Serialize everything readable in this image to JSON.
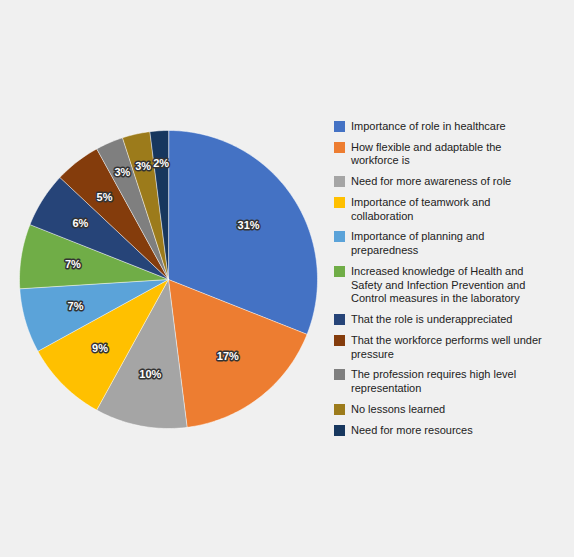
{
  "chart_data": {
    "type": "pie",
    "categories": [
      "Importance of role in healthcare",
      "How flexible and adaptable the\nworkforce is",
      "Need for more awareness of role",
      "Importance of teamwork and\ncollaboration",
      "Importance of planning and\npreparedness",
      "Increased knowledge of Health and\nSafety and Infection Prevention and\nControl measures in the laboratory",
      "That the role is underappreciated",
      "That the workforce performs well under\npressure",
      "The profession requires high level\nrepresentation",
      "No lessons learned",
      "Need for more resources"
    ],
    "values": [
      31,
      17,
      10,
      9,
      7,
      7,
      6,
      5,
      3,
      3,
      2
    ],
    "value_labels": [
      "31%",
      "17%",
      "10%",
      "9%",
      "7%",
      "7%",
      "6%",
      "5%",
      "3%",
      "3%",
      "2%"
    ],
    "colors": [
      "#4472C4",
      "#ED7D31",
      "#A5A5A5",
      "#FFC000",
      "#5BA3D9",
      "#70AD47",
      "#264478",
      "#843C0C",
      "#7F7F7F",
      "#9C7B1B",
      "#17375E"
    ],
    "data_labels": true,
    "legend": "right"
  }
}
